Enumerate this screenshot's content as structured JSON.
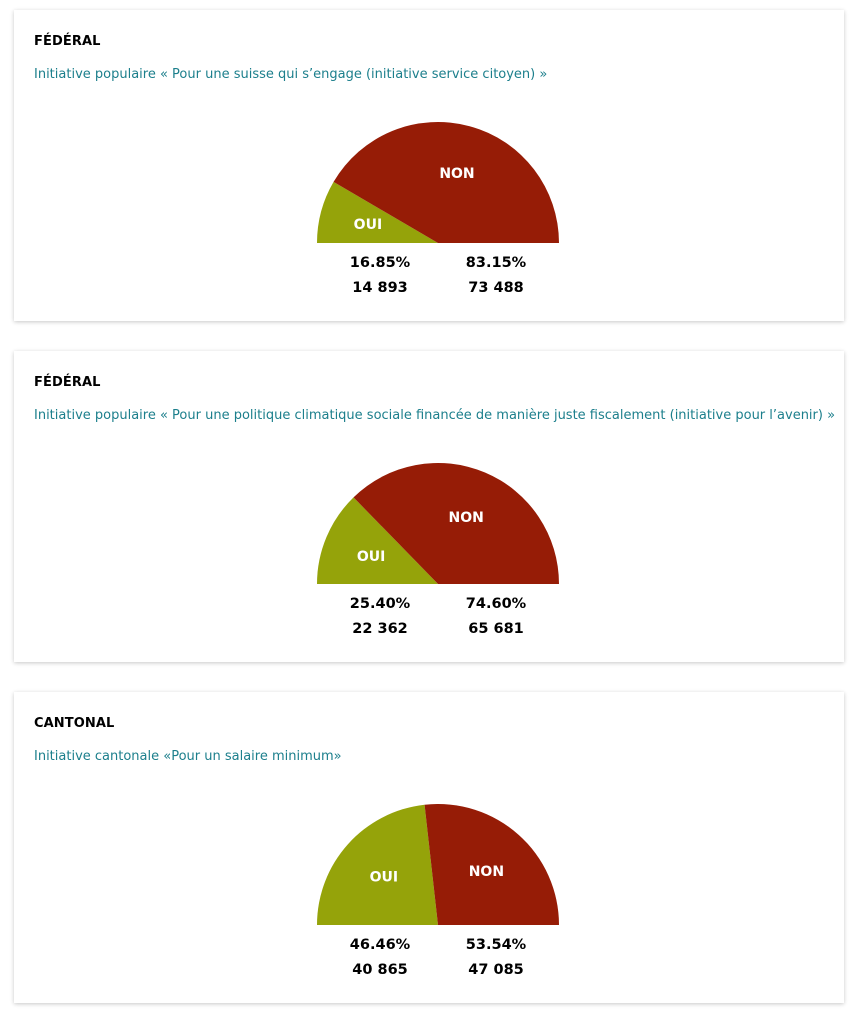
{
  "colors": {
    "oui": "#95a30a",
    "non": "#961c06",
    "title": "#1c7f8c"
  },
  "votes": [
    {
      "level": "FÉDÉRAL",
      "title": "Initiative populaire « Pour une suisse qui s’engage (initiative service citoyen) »",
      "oui": {
        "label": "OUI",
        "percent": "16.85%",
        "count": "14 893"
      },
      "non": {
        "label": "NON",
        "percent": "83.15%",
        "count": "73 488"
      }
    },
    {
      "level": "FÉDÉRAL",
      "title": "Initiative populaire « Pour une politique climatique sociale financée de manière juste fiscalement (initiative pour l’avenir) »",
      "oui": {
        "label": "OUI",
        "percent": "25.40%",
        "count": "22 362"
      },
      "non": {
        "label": "NON",
        "percent": "74.60%",
        "count": "65 681"
      }
    },
    {
      "level": "CANTONAL",
      "title": "Initiative cantonale «Pour un salaire minimum»",
      "oui": {
        "label": "OUI",
        "percent": "46.46%",
        "count": "40 865"
      },
      "non": {
        "label": "NON",
        "percent": "53.54%",
        "count": "47 085"
      }
    }
  ],
  "chart_data": [
    {
      "type": "pie",
      "labels": [
        "OUI",
        "NON"
      ],
      "values": [
        16.85,
        83.15
      ],
      "counts": [
        14893,
        73488
      ],
      "shape": "semicircle"
    },
    {
      "type": "pie",
      "labels": [
        "OUI",
        "NON"
      ],
      "values": [
        25.4,
        74.6
      ],
      "counts": [
        22362,
        65681
      ],
      "shape": "semicircle"
    },
    {
      "type": "pie",
      "labels": [
        "OUI",
        "NON"
      ],
      "values": [
        46.46,
        53.54
      ],
      "counts": [
        40865,
        47085
      ],
      "shape": "semicircle"
    }
  ]
}
